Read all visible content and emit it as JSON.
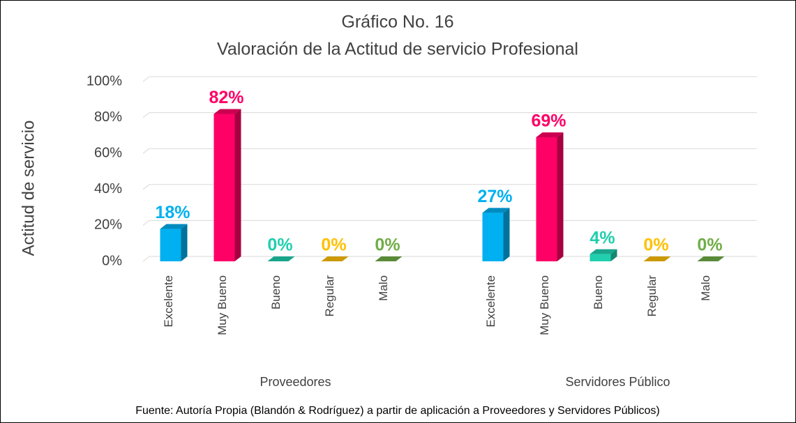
{
  "chart_data": {
    "type": "bar3d",
    "title": "Gráfico No. 16",
    "subtitle": "Valoración de la Actitud de servicio Profesional",
    "ylabel": "Actitud de servicio",
    "ylim": [
      0,
      100
    ],
    "yticks": [
      {
        "value": 0,
        "label": "0%"
      },
      {
        "value": 20,
        "label": "20%"
      },
      {
        "value": 40,
        "label": "40%"
      },
      {
        "value": 60,
        "label": "60%"
      },
      {
        "value": 80,
        "label": "80%"
      },
      {
        "value": 100,
        "label": "100%"
      }
    ],
    "grid": true,
    "colors": [
      "#00b0f0",
      "#ff0066",
      "#1fcfae",
      "#ffc000",
      "#70ad47"
    ],
    "groups": [
      {
        "name": "Proveedores",
        "categories": [
          "Excelente",
          "Muy Bueno",
          "Bueno",
          "Regular",
          "Malo"
        ],
        "values": [
          18,
          82,
          0,
          0,
          0
        ],
        "value_labels": [
          "18%",
          "82%",
          "0%",
          "0%",
          "0%"
        ]
      },
      {
        "name": "Servidores Público",
        "categories": [
          "Excelente",
          "Muy Bueno",
          "Bueno",
          "Regular",
          "Malo"
        ],
        "values": [
          27,
          69,
          4,
          0,
          0
        ],
        "value_labels": [
          "27%",
          "69%",
          "4%",
          "0%",
          "0%"
        ]
      }
    ],
    "source": "Fuente: Autoría Propia (Blandón & Rodríguez) a partir de aplicación a Proveedores y   Servidores Públicos)"
  }
}
